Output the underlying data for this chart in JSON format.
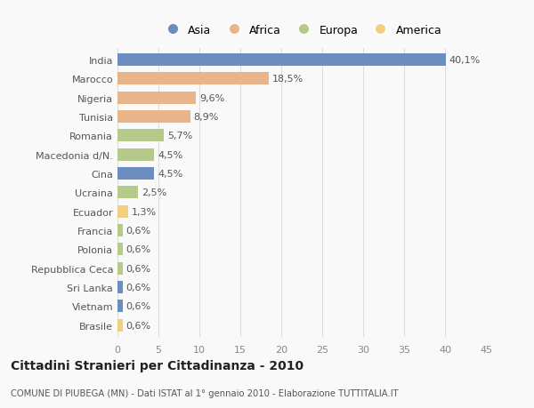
{
  "countries": [
    "India",
    "Marocco",
    "Nigeria",
    "Tunisia",
    "Romania",
    "Macedonia d/N.",
    "Cina",
    "Ucraina",
    "Ecuador",
    "Francia",
    "Polonia",
    "Repubblica Ceca",
    "Sri Lanka",
    "Vietnam",
    "Brasile"
  ],
  "values": [
    40.1,
    18.5,
    9.6,
    8.9,
    5.7,
    4.5,
    4.5,
    2.5,
    1.3,
    0.6,
    0.6,
    0.6,
    0.6,
    0.6,
    0.6
  ],
  "labels": [
    "40,1%",
    "18,5%",
    "9,6%",
    "8,9%",
    "5,7%",
    "4,5%",
    "4,5%",
    "2,5%",
    "1,3%",
    "0,6%",
    "0,6%",
    "0,6%",
    "0,6%",
    "0,6%",
    "0,6%"
  ],
  "continents": [
    "Asia",
    "Africa",
    "Africa",
    "Africa",
    "Europa",
    "Europa",
    "Asia",
    "Europa",
    "America",
    "Europa",
    "Europa",
    "Europa",
    "Asia",
    "Asia",
    "America"
  ],
  "continent_colors": {
    "Asia": "#6b8dbf",
    "Africa": "#e8b48a",
    "Europa": "#b5c98a",
    "America": "#f0d080"
  },
  "legend_order": [
    "Asia",
    "Africa",
    "Europa",
    "America"
  ],
  "xlim": [
    0,
    45
  ],
  "xticks": [
    0,
    5,
    10,
    15,
    20,
    25,
    30,
    35,
    40,
    45
  ],
  "title": "Cittadini Stranieri per Cittadinanza - 2010",
  "subtitle": "COMUNE DI PIUBEGA (MN) - Dati ISTAT al 1° gennaio 2010 - Elaborazione TUTTITALIA.IT",
  "bg_color": "#f9f9f9",
  "plot_bg_color": "#f9f9f9",
  "grid_color": "#dddddd",
  "bar_height": 0.65,
  "label_fontsize": 8.0,
  "ytick_fontsize": 8.0,
  "xtick_fontsize": 8.0
}
